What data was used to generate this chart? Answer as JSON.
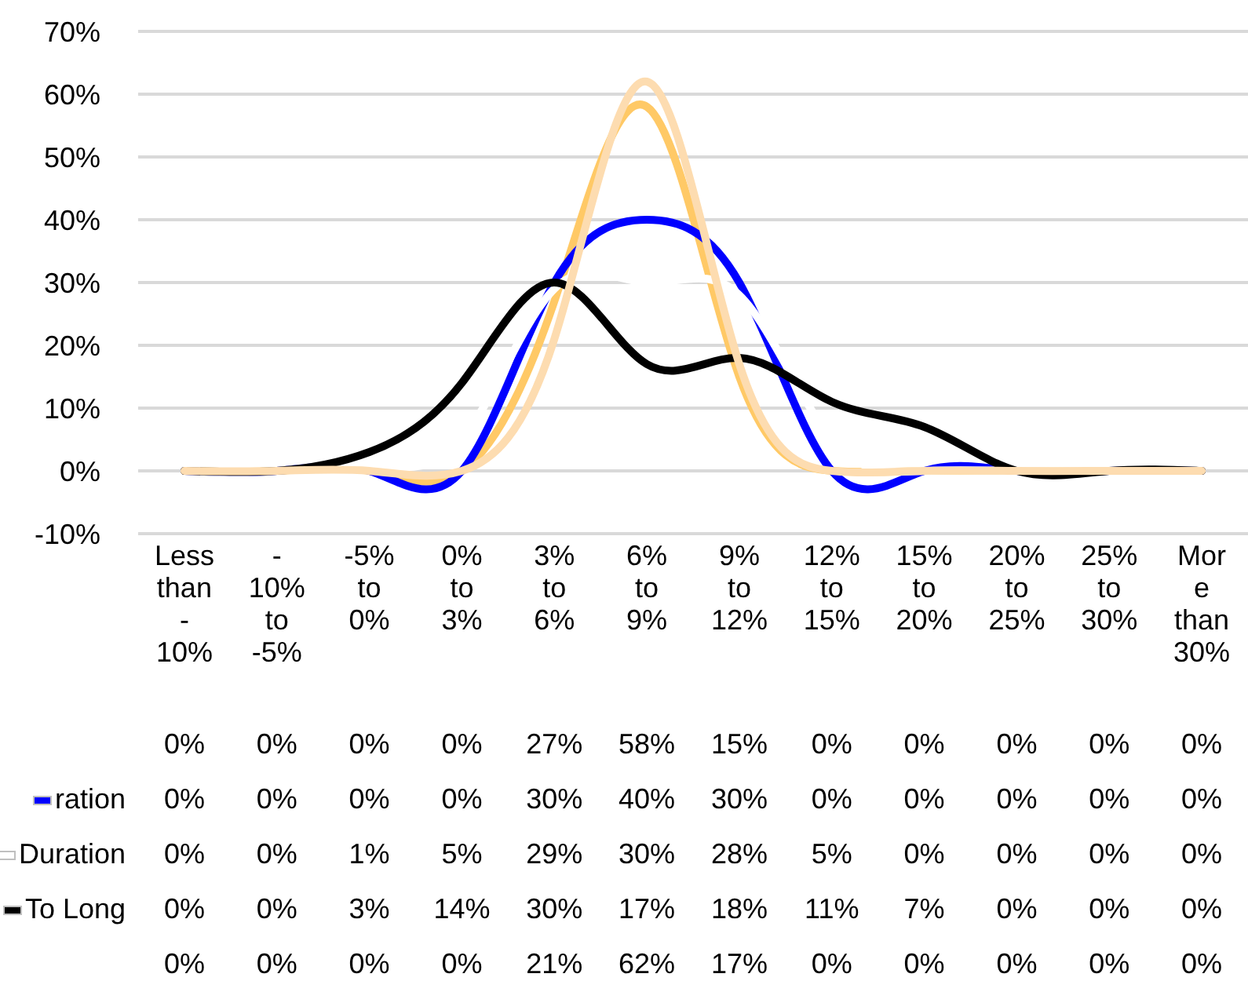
{
  "chart_data": {
    "type": "line",
    "categories": [
      "Less than -10%",
      "-10% to -5%",
      "-5% to 0%",
      "0% to 3%",
      "3% to 6%",
      "6% to 9%",
      "9% to 12%",
      "12% to 15%",
      "15% to 20%",
      "20% to 25%",
      "25% to 30%",
      "More than 30%"
    ],
    "series": [
      {
        "color": "#ffc966",
        "values": [
          0,
          0,
          0,
          0,
          27,
          58,
          15,
          0,
          0,
          0,
          0,
          0
        ],
        "value_labels": [
          "0%",
          "0%",
          "0%",
          "0%",
          "27%",
          "58%",
          "15%",
          "0%",
          "0%",
          "0%",
          "0%",
          "0%"
        ]
      },
      {
        "name": "ration",
        "color": "#0000ff",
        "values": [
          0,
          0,
          0,
          0,
          30,
          40,
          30,
          0,
          0,
          0,
          0,
          0
        ],
        "value_labels": [
          "0%",
          "0%",
          "0%",
          "0%",
          "30%",
          "40%",
          "30%",
          "0%",
          "0%",
          "0%",
          "0%",
          "0%"
        ]
      },
      {
        "name": "Duration",
        "color": "#ffffff",
        "values": [
          0,
          0,
          1,
          5,
          29,
          30,
          28,
          5,
          0,
          0,
          0,
          0
        ],
        "value_labels": [
          "0%",
          "0%",
          "1%",
          "5%",
          "29%",
          "30%",
          "28%",
          "5%",
          "0%",
          "0%",
          "0%",
          "0%"
        ]
      },
      {
        "name": "To Long",
        "color": "#000000",
        "values": [
          0,
          0,
          3,
          14,
          30,
          17,
          18,
          11,
          7,
          0,
          0,
          0
        ],
        "value_labels": [
          "0%",
          "0%",
          "3%",
          "14%",
          "30%",
          "17%",
          "18%",
          "11%",
          "7%",
          "0%",
          "0%",
          "0%"
        ]
      },
      {
        "color": "#fddcb0",
        "values": [
          0,
          0,
          0,
          0,
          21,
          62,
          17,
          0,
          0,
          0,
          0,
          0
        ],
        "value_labels": [
          "0%",
          "0%",
          "0%",
          "0%",
          "21%",
          "62%",
          "17%",
          "0%",
          "0%",
          "0%",
          "0%",
          "0%"
        ]
      }
    ],
    "ylim": [
      -10,
      70
    ],
    "yticks": [
      {
        "value": -10,
        "label": "-10%"
      },
      {
        "value": 0,
        "label": "0%"
      },
      {
        "value": 10,
        "label": "10%"
      },
      {
        "value": 20,
        "label": "20%"
      },
      {
        "value": 30,
        "label": "30%"
      },
      {
        "value": 40,
        "label": "40%"
      },
      {
        "value": 50,
        "label": "50%"
      },
      {
        "value": 60,
        "label": "60%"
      },
      {
        "value": 70,
        "label": "70%"
      }
    ],
    "grid": "y",
    "legend": "bottom left",
    "marker": "none",
    "line_style": "solid"
  }
}
